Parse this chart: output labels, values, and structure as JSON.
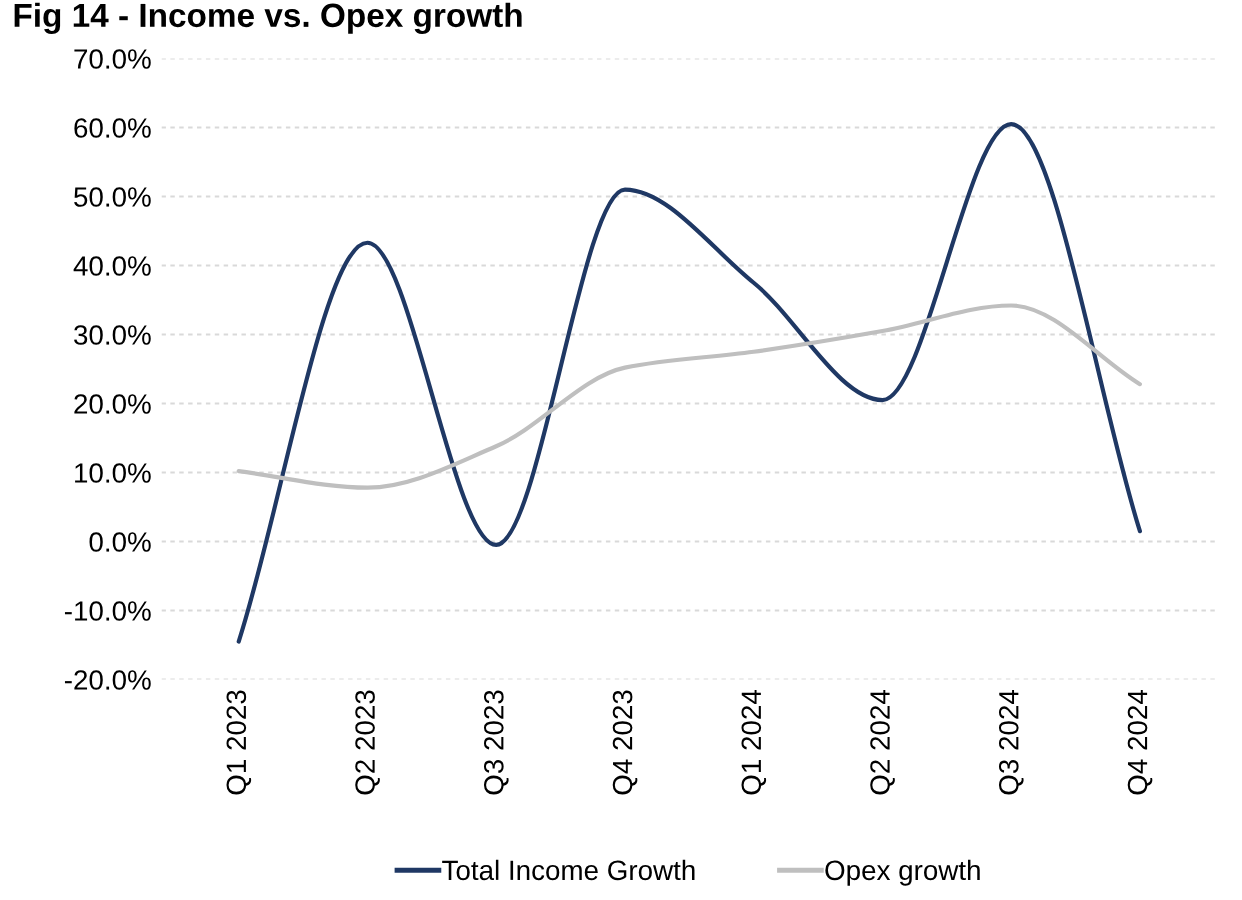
{
  "chart_data": {
    "type": "line",
    "title": "Fig 14 - Income vs. Opex growth",
    "categories": [
      "Q1 2023",
      "Q2 2023",
      "Q3 2023",
      "Q4 2023",
      "Q1 2024",
      "Q2 2024",
      "Q3 2024",
      "Q4 2024"
    ],
    "series": [
      {
        "name": "Total Income Growth",
        "color": "#1f3864",
        "values": [
          -14.5,
          43.3,
          -0.5,
          51.0,
          37.5,
          20.5,
          60.5,
          1.5
        ]
      },
      {
        "name": "Opex growth",
        "color": "#bfbfbf",
        "values": [
          10.2,
          7.8,
          13.8,
          25.2,
          27.5,
          30.5,
          34.2,
          22.8
        ]
      }
    ],
    "ylim": [
      -20,
      70
    ],
    "yticks": [
      {
        "value": -20,
        "label": "-20.0%"
      },
      {
        "value": -10,
        "label": "-10.0%"
      },
      {
        "value": 0,
        "label": "0.0%"
      },
      {
        "value": 10,
        "label": "10.0%"
      },
      {
        "value": 20,
        "label": "20.0%"
      },
      {
        "value": 30,
        "label": "30.0%"
      },
      {
        "value": 40,
        "label": "40.0%"
      },
      {
        "value": 50,
        "label": "50.0%"
      },
      {
        "value": 60,
        "label": "60.0%"
      },
      {
        "value": 70,
        "label": "70.0%"
      }
    ],
    "grid": "y",
    "legend": "bottom",
    "marker": "none",
    "line_style": "solid"
  }
}
